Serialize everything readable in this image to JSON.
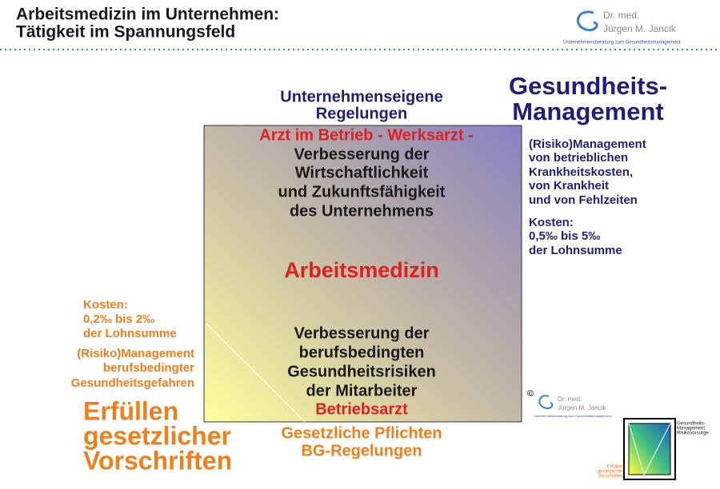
{
  "header": {
    "title_lines": [
      "Arbeitsmedizin im Unternehmen:",
      "Tätigkeit im Spannungsfeld"
    ],
    "logo": {
      "name_lines": [
        "Dr. med.",
        "Jürgen M. Jancik"
      ],
      "tagline": "Unternehmensberatung zum Gesundheitsmanagement"
    }
  },
  "top": {
    "lines": [
      "Unternehmenseigene",
      "Regelungen"
    ]
  },
  "right": {
    "heading_lines": [
      "Gesundheits-",
      "Management"
    ],
    "description_lines": [
      "(Risiko)Management",
      "von betrieblichen",
      "Krankheitskosten,",
      "von Krankheit",
      "und von Fehlzeiten"
    ],
    "cost_lines": [
      "Kosten:",
      "0,5‰ bis 5‰",
      "der Lohnsumme"
    ]
  },
  "square": {
    "top_label": "Arzt im Betrieb - Werksarzt -",
    "top_lines": [
      "Verbesserung der",
      "Wirtschaftlichkeit",
      "und Zukunftsfähigkeit",
      "des Unternehmens"
    ],
    "center": "Arbeitsmedizin",
    "bottom_lines": [
      "Verbesserung der",
      "berufsbedingten",
      "Gesundheitsrisiken",
      "der Mitarbeiter"
    ],
    "bottom_label": "Betriebsarzt"
  },
  "bottom": {
    "lines": [
      "Gesetzliche Pflichten",
      "BG-Regelungen"
    ]
  },
  "left": {
    "cost_lines": [
      "Kosten:",
      "0,2‰ bis 2‰",
      "der Lohnsumme"
    ],
    "description_lines": [
      "(Risiko)Management",
      "berufsbedingter",
      "Gesundheitsgefahren"
    ],
    "heading_lines": [
      "Erfüllen",
      "gesetzlicher",
      "Vorschriften"
    ]
  },
  "footer": {
    "copyright": "©",
    "logo_name_lines": [
      "Dr. med.",
      "Jürgen M. Jancik"
    ],
    "logo_tagline": "Unternehmensberatung zum Gesundheitsmanagement",
    "thumbnail": {
      "top_labels": [
        "Gesundheits-",
        "Management",
        "Risikovorsorge"
      ],
      "bottom_labels": [
        "Erfüllen",
        "gesetzlicher",
        "Vorschriften"
      ]
    }
  }
}
